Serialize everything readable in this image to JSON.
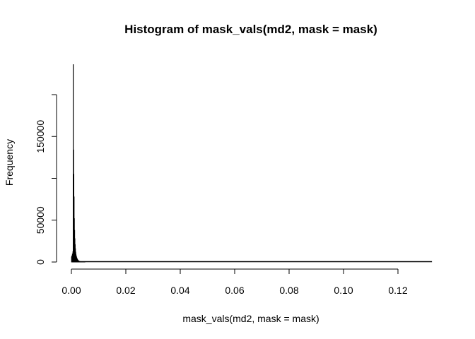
{
  "chart_data": {
    "type": "bar",
    "title": "Histogram of mask_vals(md2, mask = mask)",
    "xlabel": "mask_vals(md2, mask = mask)",
    "ylabel": "Frequency",
    "xlim": [
      0,
      0.1325
    ],
    "ylim": [
      0,
      237000
    ],
    "x_ticks": [
      "0.00",
      "0.02",
      "0.04",
      "0.06",
      "0.08",
      "0.10",
      "0.12"
    ],
    "y_ticks": [
      "0",
      "50000",
      "150000"
    ],
    "x_tick_values": [
      0,
      0.02,
      0.04,
      0.06,
      0.08,
      0.1,
      0.12
    ],
    "y_tick_values": [
      0,
      50000,
      100000,
      150000,
      200000
    ],
    "bin_width": 0.0001,
    "bin_start": 0.0,
    "values": [
      6000,
      7500,
      5200,
      9800,
      8100,
      12500,
      236000,
      134000,
      105000,
      78000,
      52000,
      38000,
      28000,
      21000,
      16000,
      12000,
      9500,
      7600,
      6200,
      5100,
      4200,
      3500,
      2900,
      2400,
      2000,
      1700,
      1400,
      1200,
      1000,
      850,
      720,
      610,
      520,
      440,
      380,
      330,
      280,
      240,
      210,
      180,
      150,
      130,
      110,
      95,
      80,
      70,
      60,
      50,
      42,
      35
    ],
    "bar_color": "#000000"
  }
}
